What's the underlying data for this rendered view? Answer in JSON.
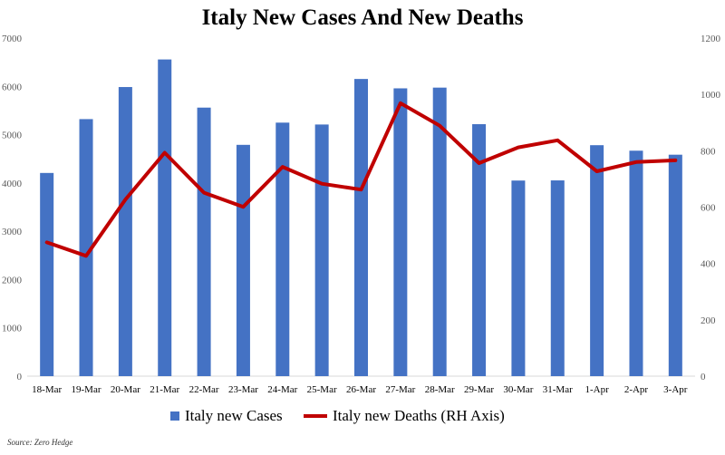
{
  "chart_data": {
    "type": "bar",
    "title": "Italy New Cases And New Deaths",
    "categories": [
      "18-Mar",
      "19-Mar",
      "20-Mar",
      "21-Mar",
      "22-Mar",
      "23-Mar",
      "24-Mar",
      "25-Mar",
      "26-Mar",
      "27-Mar",
      "28-Mar",
      "29-Mar",
      "30-Mar",
      "31-Mar",
      "1-Apr",
      "2-Apr",
      "3-Apr"
    ],
    "series": [
      {
        "name": "Italy new Cases",
        "type": "bar",
        "axis": "left",
        "color": "#4472C4",
        "values": [
          4207,
          5322,
          5986,
          6557,
          5560,
          4789,
          5249,
          5210,
          6153,
          5959,
          5974,
          5217,
          4050,
          4053,
          4782,
          4668,
          4585
        ]
      },
      {
        "name": "Italy new Deaths (RH Axis)",
        "type": "line",
        "axis": "right",
        "color": "#C00000",
        "values": [
          475,
          427,
          627,
          793,
          651,
          601,
          743,
          683,
          662,
          969,
          889,
          756,
          812,
          837,
          727,
          760,
          766
        ]
      }
    ],
    "y_left": {
      "min": 0,
      "max": 7000,
      "ticks": [
        0,
        1000,
        2000,
        3000,
        4000,
        5000,
        6000,
        7000
      ]
    },
    "y_right": {
      "min": 0,
      "max": 1200,
      "ticks": [
        0,
        200,
        400,
        600,
        800,
        1000,
        1200
      ]
    },
    "grid": false,
    "legend_position": "bottom"
  },
  "source": "Source: Zero Hedge"
}
